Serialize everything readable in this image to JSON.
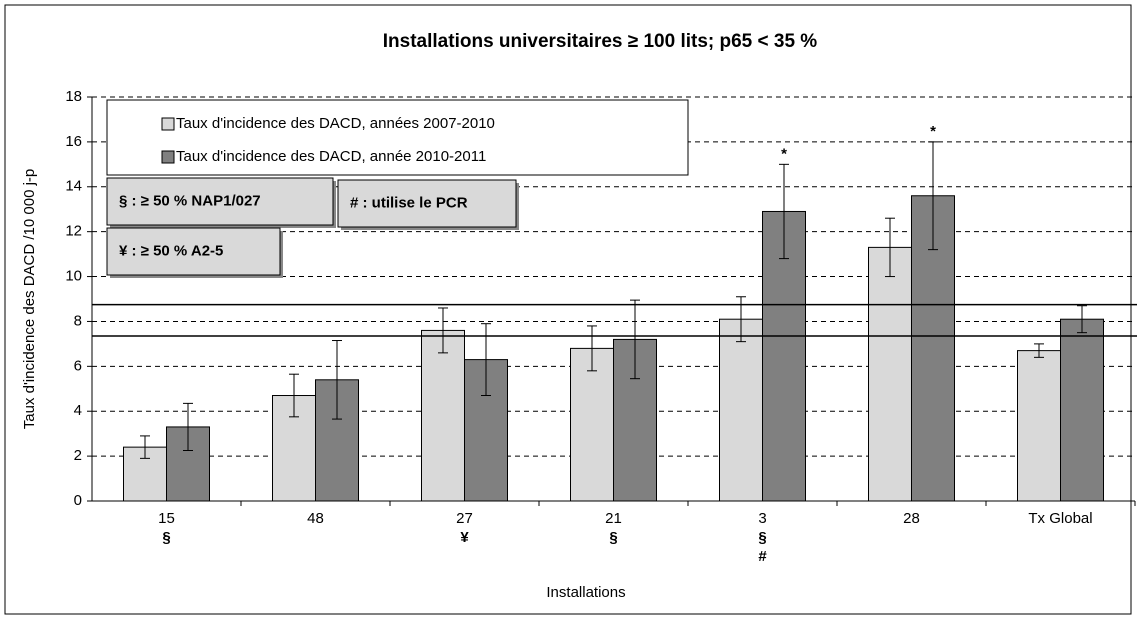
{
  "chart_data": {
    "type": "bar",
    "title": "Installations universitaires ≥ 100 lits; p65 < 35 %",
    "x_label": "Installations",
    "y_label": "Taux d'incidence des DACD /10 000 j-p",
    "categories": [
      "15",
      "48",
      "27",
      "21",
      "3",
      "28",
      "Tx Global"
    ],
    "category_notes": [
      [
        "§"
      ],
      [],
      [
        "¥"
      ],
      [
        "§"
      ],
      [
        "§",
        "#"
      ],
      [],
      []
    ],
    "series": [
      {
        "name": "Taux d'incidence des DACD, années 2007-2010",
        "color": "#d9d9d9",
        "values": [
          2.4,
          4.7,
          7.6,
          6.8,
          8.1,
          11.3,
          6.7
        ],
        "errors": [
          0.5,
          0.95,
          1.0,
          1.0,
          1.0,
          1.3,
          0.3
        ],
        "markers": [
          null,
          null,
          null,
          null,
          null,
          null,
          null
        ]
      },
      {
        "name": "Taux d'incidence des DACD, année 2010-2011",
        "color": "#808080",
        "values": [
          3.3,
          5.4,
          6.3,
          7.2,
          12.9,
          13.6,
          8.1
        ],
        "errors": [
          1.05,
          1.75,
          1.6,
          1.75,
          2.1,
          2.4,
          0.6
        ],
        "markers": [
          null,
          null,
          null,
          null,
          "*",
          "*",
          null
        ]
      }
    ],
    "reference_lines": [
      8.75,
      7.35
    ],
    "annotations": [
      "§ : ≥ 50 % NAP1/027",
      "# : utilise le PCR",
      "¥ : ≥ 50 % A2-5"
    ],
    "ylim": [
      0,
      18
    ],
    "yticks": [
      0,
      2,
      4,
      6,
      8,
      10,
      12,
      14,
      16,
      18
    ],
    "grid": true
  }
}
